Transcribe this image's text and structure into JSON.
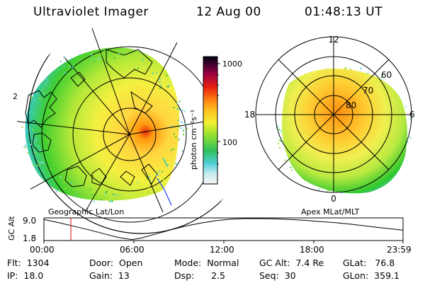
{
  "header": {
    "instrument": "Ultraviolet Imager",
    "date": "12 Aug 00",
    "time": "01:48:13 UT"
  },
  "colorbar": {
    "unit_label": "photon cm⁻²s⁻¹",
    "ticks": [
      "1000",
      "100"
    ]
  },
  "left_map": {
    "label": "Geographic Lat/Lon",
    "edge_mark": "2"
  },
  "right_map": {
    "label": "Apex MLat/MLT",
    "mlt_labels": {
      "top": "12",
      "left": "18",
      "right": "6",
      "bottom": "0"
    },
    "lat_labels": [
      "60",
      "70",
      "80"
    ]
  },
  "altitude_plot": {
    "ylabel": "GC Alt",
    "y_ticks": [
      "9.0",
      "1.8"
    ],
    "x_ticks": [
      "00:00",
      "06:00",
      "12:00",
      "18:00",
      "23:59"
    ],
    "marker_time_hours": 1.8,
    "ylim": [
      1.8,
      9.0
    ]
  },
  "info": {
    "flt": "Flt:  1304",
    "door": "Door:  Open",
    "mode": "Mode:  Normal",
    "gcalt": "GC Alt:  7.4 Re",
    "glat": "GLat:   76.8",
    "ip": "IP:  18.0",
    "gain": "Gain:  13",
    "dsp": "Dsp:      2.5",
    "seq": "Seq:  30",
    "glon": "GLon:  359.1"
  },
  "colors": {
    "marker": "#e00000",
    "orbit_line": "#000000",
    "blue_line": "#2040ff"
  }
}
